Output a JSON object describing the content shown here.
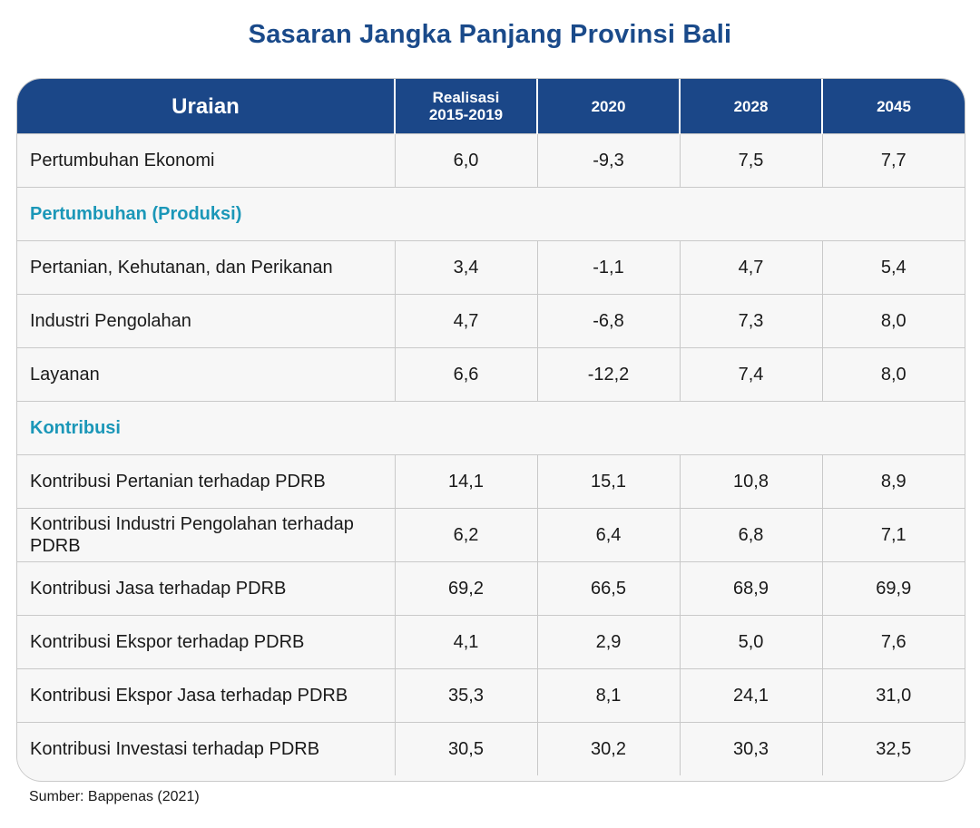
{
  "title": "Sasaran Jangka Panjang Provinsi Bali",
  "header": {
    "col0": "Uraian",
    "col1_line1": "Realisasi",
    "col1_line2": "2015-2019",
    "col2": "2020",
    "col3": "2028",
    "col4": "2045"
  },
  "rows": [
    {
      "label": "Pertumbuhan Ekonomi",
      "v1": "6,0",
      "v2": "-9,3",
      "v3": "7,5",
      "v4": "7,7"
    },
    {
      "section": "Pertumbuhan (Produksi)"
    },
    {
      "label": "Pertanian, Kehutanan, dan Perikanan",
      "v1": "3,4",
      "v2": "-1,1",
      "v3": "4,7",
      "v4": "5,4"
    },
    {
      "label": "Industri Pengolahan",
      "v1": "4,7",
      "v2": "-6,8",
      "v3": "7,3",
      "v4": "8,0"
    },
    {
      "label": "Layanan",
      "v1": "6,6",
      "v2": "-12,2",
      "v3": "7,4",
      "v4": "8,0"
    },
    {
      "section": "Kontribusi"
    },
    {
      "label": "Kontribusi Pertanian terhadap PDRB",
      "v1": "14,1",
      "v2": "15,1",
      "v3": "10,8",
      "v4": "8,9"
    },
    {
      "label": "Kontribusi Industri Pengolahan terhadap PDRB",
      "v1": "6,2",
      "v2": "6,4",
      "v3": "6,8",
      "v4": "7,1"
    },
    {
      "label": "Kontribusi Jasa terhadap PDRB",
      "v1": "69,2",
      "v2": "66,5",
      "v3": "68,9",
      "v4": "69,9"
    },
    {
      "label": "Kontribusi Ekspor terhadap PDRB",
      "v1": "4,1",
      "v2": "2,9",
      "v3": "5,0",
      "v4": "7,6"
    },
    {
      "label": "Kontribusi Ekspor Jasa terhadap PDRB",
      "v1": "35,3",
      "v2": "8,1",
      "v3": "24,1",
      "v4": "31,0"
    },
    {
      "label": "Kontribusi Investasi terhadap PDRB",
      "v1": "30,5",
      "v2": "30,2",
      "v3": "30,3",
      "v4": "32,5"
    }
  ],
  "source": "Sumber: Bappenas (2021)",
  "colors": {
    "header_bg": "#1b4788",
    "title": "#1a4a8a",
    "section": "#1b97b8"
  }
}
